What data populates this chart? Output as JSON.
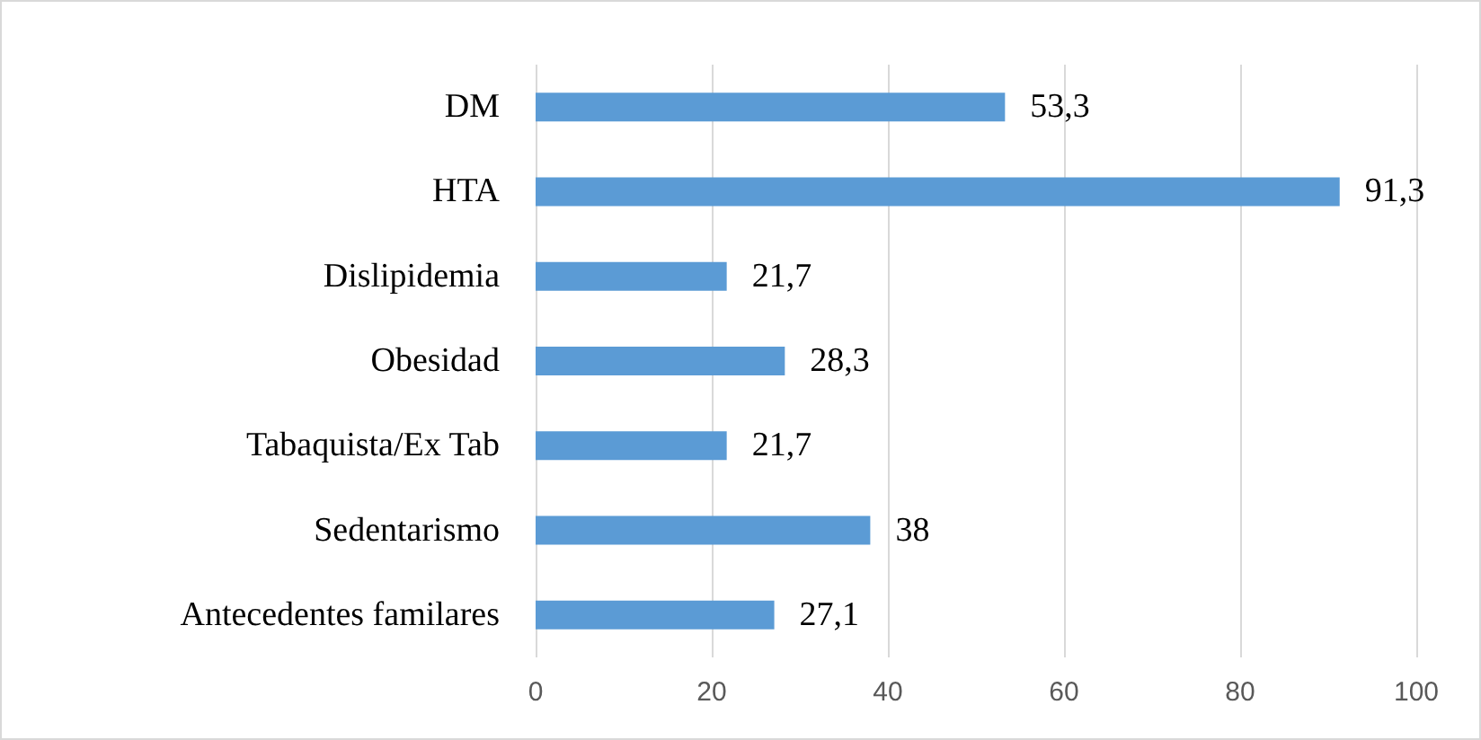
{
  "chart_data": {
    "type": "bar",
    "orientation": "horizontal",
    "categories": [
      "DM",
      "HTA",
      "Dislipidemia",
      "Obesidad",
      "Tabaquista/Ex Tab",
      "Sedentarismo",
      "Antecedentes familares"
    ],
    "values": [
      53.3,
      91.3,
      21.7,
      28.3,
      21.7,
      38,
      27.1
    ],
    "value_labels": [
      "53,3",
      "91,3",
      "21,7",
      "28,3",
      "21,7",
      "38",
      "27,1"
    ],
    "color": "#5b9bd5",
    "xlim": [
      0,
      100
    ],
    "xticks": [
      0,
      20,
      40,
      60,
      80,
      100
    ],
    "grid": "x"
  }
}
